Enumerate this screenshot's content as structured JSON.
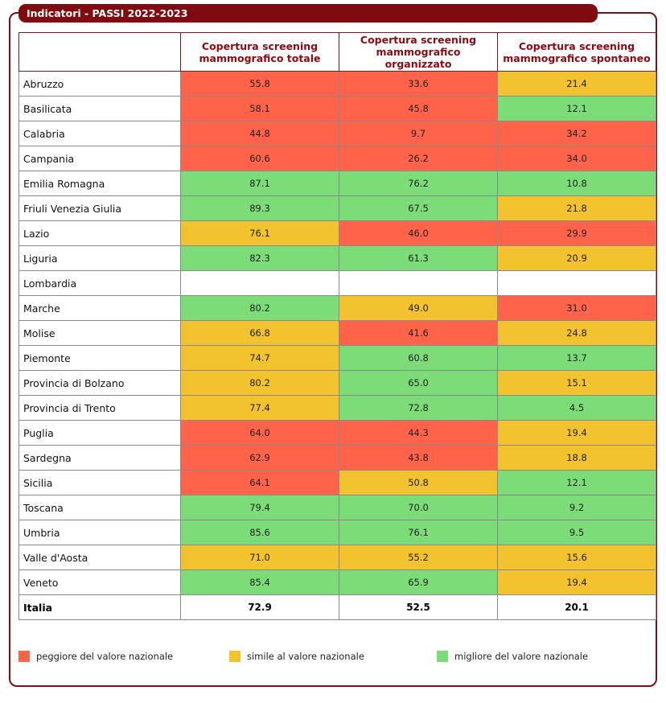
{
  "title": "Indicatori - PASSI 2022-2023",
  "chart_data": {
    "type": "table",
    "title": "Indicatori - PASSI 2022-2023",
    "columns": [
      "",
      "Copertura screening mammografico totale",
      "Copertura screening mammografico organizzato",
      "Copertura screening mammografico spontaneo"
    ],
    "rows": [
      {
        "region": "Abruzzo",
        "values": [
          "55.8",
          "33.6",
          "21.4"
        ],
        "status": [
          "worse",
          "worse",
          "similar"
        ]
      },
      {
        "region": "Basilicata",
        "values": [
          "58.1",
          "45.8",
          "12.1"
        ],
        "status": [
          "worse",
          "worse",
          "better"
        ]
      },
      {
        "region": "Calabria",
        "values": [
          "44.8",
          "9.7",
          "34.2"
        ],
        "status": [
          "worse",
          "worse",
          "worse"
        ]
      },
      {
        "region": "Campania",
        "values": [
          "60.6",
          "26.2",
          "34.0"
        ],
        "status": [
          "worse",
          "worse",
          "worse"
        ]
      },
      {
        "region": "Emilia Romagna",
        "values": [
          "87.1",
          "76.2",
          "10.8"
        ],
        "status": [
          "better",
          "better",
          "better"
        ]
      },
      {
        "region": "Friuli Venezia Giulia",
        "values": [
          "89.3",
          "67.5",
          "21.8"
        ],
        "status": [
          "better",
          "better",
          "similar"
        ]
      },
      {
        "region": "Lazio",
        "values": [
          "76.1",
          "46.0",
          "29.9"
        ],
        "status": [
          "similar",
          "worse",
          "worse"
        ]
      },
      {
        "region": "Liguria",
        "values": [
          "82.3",
          "61.3",
          "20.9"
        ],
        "status": [
          "better",
          "better",
          "similar"
        ]
      },
      {
        "region": "Lombardia",
        "values": [
          "",
          "",
          ""
        ],
        "status": [
          "none",
          "none",
          "none"
        ]
      },
      {
        "region": "Marche",
        "values": [
          "80.2",
          "49.0",
          "31.0"
        ],
        "status": [
          "better",
          "similar",
          "worse"
        ]
      },
      {
        "region": "Molise",
        "values": [
          "66.8",
          "41.6",
          "24.8"
        ],
        "status": [
          "similar",
          "worse",
          "similar"
        ]
      },
      {
        "region": "Piemonte",
        "values": [
          "74.7",
          "60.8",
          "13.7"
        ],
        "status": [
          "similar",
          "better",
          "better"
        ]
      },
      {
        "region": "Provincia di Bolzano",
        "values": [
          "80.2",
          "65.0",
          "15.1"
        ],
        "status": [
          "similar",
          "better",
          "similar"
        ]
      },
      {
        "region": "Provincia di Trento",
        "values": [
          "77.4",
          "72.8",
          "4.5"
        ],
        "status": [
          "similar",
          "better",
          "better"
        ]
      },
      {
        "region": "Puglia",
        "values": [
          "64.0",
          "44.3",
          "19.4"
        ],
        "status": [
          "worse",
          "worse",
          "similar"
        ]
      },
      {
        "region": "Sardegna",
        "values": [
          "62.9",
          "43.8",
          "18.8"
        ],
        "status": [
          "worse",
          "worse",
          "similar"
        ]
      },
      {
        "region": "Sicilia",
        "values": [
          "64.1",
          "50.8",
          "12.1"
        ],
        "status": [
          "worse",
          "similar",
          "better"
        ]
      },
      {
        "region": "Toscana",
        "values": [
          "79.4",
          "70.0",
          "9.2"
        ],
        "status": [
          "better",
          "better",
          "better"
        ]
      },
      {
        "region": "Umbria",
        "values": [
          "85.6",
          "76.1",
          "9.5"
        ],
        "status": [
          "better",
          "better",
          "better"
        ]
      },
      {
        "region": "Valle d'Aosta",
        "values": [
          "71.0",
          "55.2",
          "15.6"
        ],
        "status": [
          "similar",
          "similar",
          "similar"
        ]
      },
      {
        "region": "Veneto",
        "values": [
          "85.4",
          "65.9",
          "19.4"
        ],
        "status": [
          "better",
          "better",
          "similar"
        ]
      }
    ],
    "total": {
      "region": "Italia",
      "values": [
        "72.9",
        "52.5",
        "20.1"
      ]
    },
    "legend": [
      {
        "key": "worse",
        "label": "peggiore del valore nazionale",
        "color": "#ff634a"
      },
      {
        "key": "similar",
        "label": "simile al valore nazionale",
        "color": "#f3c22f"
      },
      {
        "key": "better",
        "label": "migliore del valore nazionale",
        "color": "#7cdc78"
      }
    ]
  },
  "colors": {
    "accent": "#7f0a0f",
    "worse": "#ff634a",
    "similar": "#f3c22f",
    "better": "#7cdc78"
  }
}
